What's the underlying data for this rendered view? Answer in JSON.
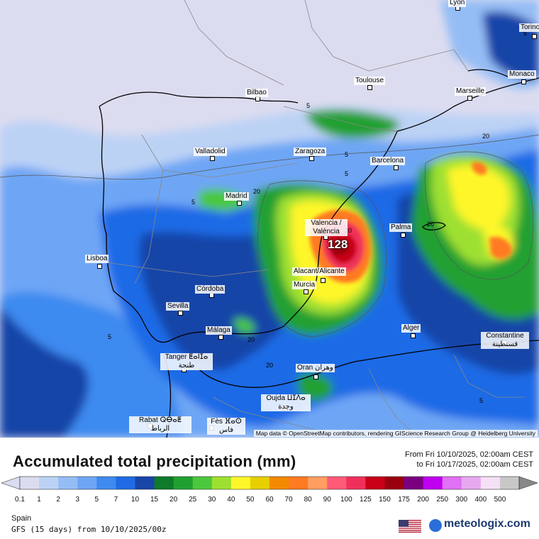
{
  "map": {
    "cities": [
      {
        "name": "Lyon",
        "key": "lyon"
      },
      {
        "name": "Torino",
        "key": "torino"
      },
      {
        "name": "Monaco",
        "key": "monaco"
      },
      {
        "name": "Marseille",
        "key": "marseille"
      },
      {
        "name": "Toulouse",
        "key": "toulouse"
      },
      {
        "name": "Bilbao",
        "key": "bilbao"
      },
      {
        "name": "Valladolid",
        "key": "valladolid"
      },
      {
        "name": "Zaragoza",
        "key": "zaragoza"
      },
      {
        "name": "Barcelona",
        "key": "barcelona"
      },
      {
        "name": "Madrid",
        "key": "madrid"
      },
      {
        "name": "Valencia / València",
        "key": "valencia"
      },
      {
        "name": "Palma",
        "key": "palma"
      },
      {
        "name": "Lisboa",
        "key": "lisboa"
      },
      {
        "name": "Alacant/Alicante",
        "key": "alicante"
      },
      {
        "name": "Murcia",
        "key": "murcia"
      },
      {
        "name": "Córdoba",
        "key": "cordoba"
      },
      {
        "name": "Sevilla",
        "key": "sevilla"
      },
      {
        "name": "Málaga",
        "key": "malaga"
      },
      {
        "name": "Alger",
        "key": "alger"
      },
      {
        "name": "Constantine قسنطينة",
        "key": "constantine"
      },
      {
        "name": "Tanger ⵟⴰⵏⵊⴰ طنجة",
        "key": "tanger"
      },
      {
        "name": "Oran وهران",
        "key": "oran"
      },
      {
        "name": "Oujda ⵡⵊⴷⴰ وجدة",
        "key": "oujda"
      },
      {
        "name": "Rabat ⵕⴱⴰⵟ الرباط",
        "key": "rabat"
      },
      {
        "name": "Fès ⴼⴰⵙ فاس",
        "key": "fes"
      }
    ],
    "contour_labels": [
      "5",
      "5",
      "5",
      "5",
      "5",
      "5",
      "5",
      "20",
      "20",
      "20",
      "20",
      "20",
      "20"
    ],
    "max_value": "128",
    "attribution": "Map data © OpenStreetMap contributors, rendering GIScience Research Group @ Heidelberg University"
  },
  "title": "Accumulated total precipitation (mm)",
  "period": {
    "from": "From Fri 10/10/2025, 02:00am CEST",
    "to": "to Fri 10/17/2025, 02:00am CEST"
  },
  "legend": {
    "labels": [
      "0.1",
      "1",
      "2",
      "3",
      "5",
      "7",
      "10",
      "15",
      "20",
      "25",
      "30",
      "40",
      "50",
      "60",
      "70",
      "80",
      "90",
      "100",
      "125",
      "150",
      "175",
      "200",
      "250",
      "300",
      "400",
      "500"
    ],
    "colors": [
      "#dcdcf0",
      "#bcd2f5",
      "#95bdf5",
      "#6ea6f5",
      "#3e8af0",
      "#1f6be6",
      "#1845a8",
      "#0e7a2a",
      "#20a030",
      "#4cc83c",
      "#9ee030",
      "#fff62a",
      "#e8d000",
      "#f28a00",
      "#ff7a20",
      "#ff9e60",
      "#ff5a78",
      "#f0305a",
      "#c80018",
      "#9a0010",
      "#7a0080",
      "#c000f0",
      "#e070f5",
      "#e8a8f0",
      "#f5e0f5",
      "#c8c8c8"
    ]
  },
  "region": "Spain",
  "model": "GFS (15 days) from 10/10/2025/00z",
  "brand": "meteologix.com"
}
